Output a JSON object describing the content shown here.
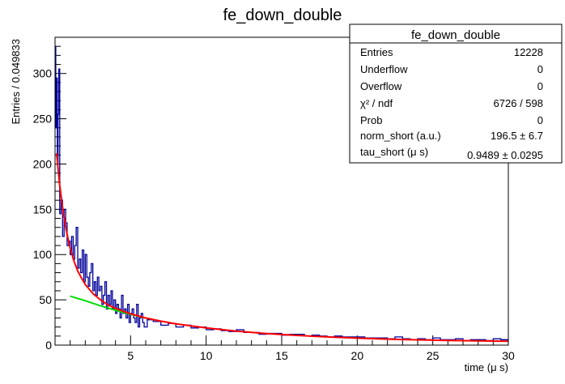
{
  "chart_data": {
    "type": "histogram",
    "title": "fe_down_double",
    "xlabel": "time (μ s)",
    "ylabel": "Entries / 0.049833",
    "xlim": [
      0,
      30
    ],
    "ylim": [
      0,
      340
    ],
    "x_ticks": [
      5,
      10,
      15,
      20,
      25,
      30
    ],
    "y_ticks": [
      0,
      50,
      100,
      150,
      200,
      250,
      300
    ],
    "grid": false,
    "colors": {
      "histogram": "#000099",
      "fit": "#ff0000",
      "tail_fit": "#00dd00",
      "frame": "#000000"
    },
    "stats_box": {
      "title": "fe_down_double",
      "rows": [
        {
          "label": "Entries",
          "value": "12228"
        },
        {
          "label": "Underflow",
          "value": "0"
        },
        {
          "label": "Overflow",
          "value": "0"
        },
        {
          "label": "χ² / ndf",
          "value": "6726 / 598"
        },
        {
          "label": "Prob",
          "value": "0"
        },
        {
          "label": "norm_short (a.u.)",
          "value": "196.5 ± 6.7"
        },
        {
          "label": "tau_short (μ s)",
          "value": "0.9489 ± 0.0295"
        }
      ]
    },
    "histogram": {
      "bin_width": 0.049833,
      "x": [
        0.025,
        0.075,
        0.125,
        0.175,
        0.225,
        0.275,
        0.35,
        0.45,
        0.55,
        0.65,
        0.75,
        0.85,
        0.95,
        1.05,
        1.15,
        1.25,
        1.35,
        1.45,
        1.55,
        1.65,
        1.75,
        1.85,
        1.95,
        2.05,
        2.15,
        2.25,
        2.35,
        2.45,
        2.55,
        2.65,
        2.75,
        2.85,
        2.95,
        3.05,
        3.15,
        3.25,
        3.35,
        3.45,
        3.55,
        3.65,
        3.75,
        3.85,
        3.95,
        4.05,
        4.15,
        4.25,
        4.35,
        4.45,
        4.55,
        4.65,
        4.75,
        4.85,
        4.95,
        5.05,
        5.15,
        5.25,
        5.35,
        5.45,
        5.55,
        5.65,
        5.75,
        5.85,
        5.95,
        6.25,
        6.75,
        7.25,
        7.75,
        8.25,
        8.75,
        9.25,
        9.75,
        10.25,
        10.75,
        11.25,
        11.75,
        12.25,
        12.75,
        13.25,
        13.75,
        14.25,
        14.75,
        15.25,
        15.75,
        16.25,
        16.75,
        17.25,
        17.75,
        18.25,
        18.75,
        19.25,
        19.75,
        20.25,
        20.75,
        21.25,
        21.75,
        22.25,
        22.75,
        23.25,
        23.75,
        24.25,
        24.75,
        25.25,
        25.75,
        26.25,
        26.75,
        27.25,
        27.75,
        28.25,
        28.75,
        29.25,
        29.75
      ],
      "y": [
        330,
        240,
        295,
        200,
        255,
        305,
        145,
        160,
        120,
        150,
        135,
        110,
        115,
        100,
        120,
        95,
        110,
        130,
        85,
        95,
        80,
        105,
        70,
        100,
        75,
        65,
        80,
        90,
        60,
        70,
        55,
        75,
        60,
        65,
        45,
        55,
        70,
        40,
        55,
        45,
        60,
        40,
        50,
        35,
        45,
        40,
        30,
        55,
        35,
        40,
        30,
        45,
        25,
        35,
        40,
        30,
        25,
        45,
        20,
        30,
        35,
        25,
        20,
        28,
        26,
        22,
        24,
        20,
        22,
        19,
        20,
        17,
        18,
        16,
        15,
        17,
        14,
        14,
        12,
        13,
        13,
        11,
        12,
        12,
        10,
        11,
        10,
        9,
        10,
        9,
        9,
        9,
        8,
        8,
        8,
        7,
        9,
        7,
        6,
        7,
        6,
        8,
        6,
        6,
        7,
        5,
        6,
        6,
        5,
        7,
        6
      ]
    },
    "fit_curve": {
      "x": [
        0.1,
        0.3,
        0.5,
        0.75,
        1.0,
        1.25,
        1.5,
        1.75,
        2.0,
        2.5,
        3.0,
        3.5,
        4.0,
        5.0,
        6.0,
        7.0,
        8.0,
        10.0,
        12.0,
        14.0,
        16.0,
        18.0,
        20.0,
        22.0,
        24.0,
        26.0,
        28.0,
        30.0
      ],
      "y": [
        212,
        178,
        152,
        126,
        107,
        93,
        82,
        74,
        67,
        57,
        50,
        44.5,
        40.5,
        34.5,
        30,
        26.5,
        23.5,
        19,
        15.5,
        12.8,
        10.7,
        9,
        7.7,
        6.6,
        5.8,
        5.2,
        4.7,
        4.3
      ]
    },
    "tail_fit": {
      "x": [
        1.0,
        2.0,
        3.0,
        4.0,
        5.0,
        6.0
      ],
      "y": [
        54,
        49,
        43.5,
        38.5,
        34,
        30
      ]
    }
  }
}
